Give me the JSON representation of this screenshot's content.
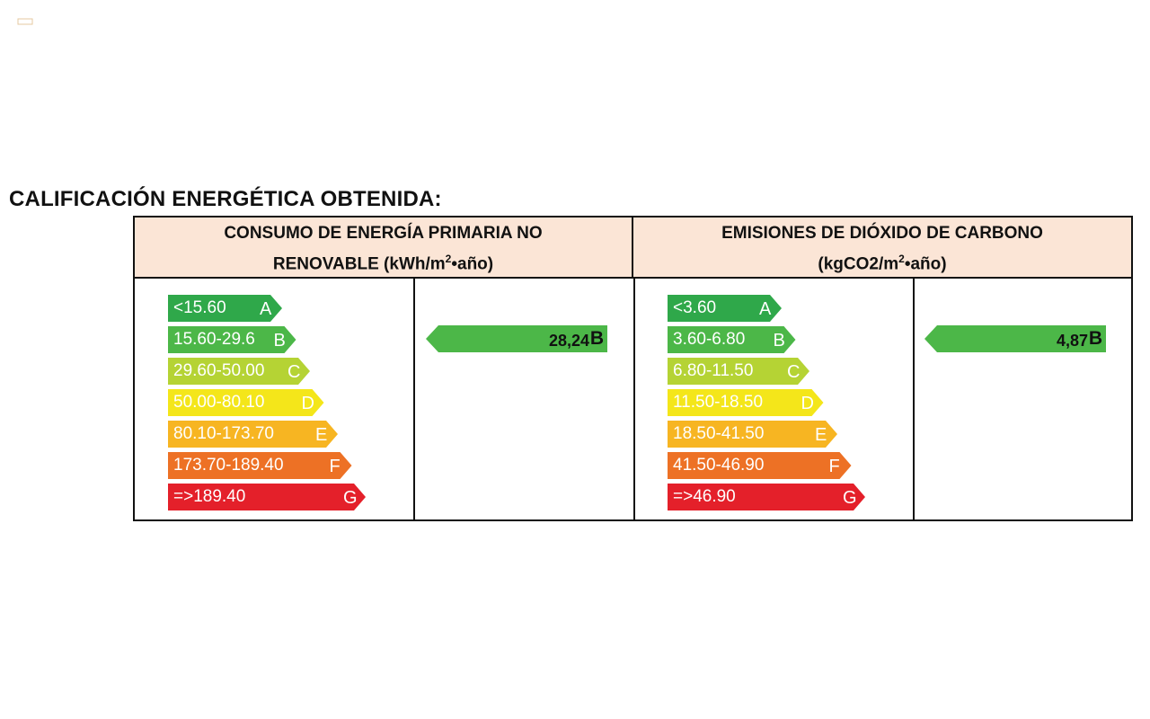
{
  "title": "CALIFICACIÓN ENERGÉTICA OBTENIDA:",
  "energy": {
    "header_line1": "CONSUMO  DE ENERGÍA PRIMARIA NO",
    "header_line2_pre": "RENOVABLE (kWh/m",
    "header_sup": "2",
    "header_line2_post": "•año)",
    "bands": [
      {
        "range": "<15.60",
        "letter": "A",
        "color": "#2fa84a"
      },
      {
        "range": "15.60-29.6",
        "letter": "B",
        "color": "#4cb748"
      },
      {
        "range": "29.60-50.00",
        "letter": "C",
        "color": "#b5d334"
      },
      {
        "range": "50.00-80.10",
        "letter": "D",
        "color": "#f4e61a"
      },
      {
        "range": "80.10-173.70",
        "letter": "E",
        "color": "#f7b522"
      },
      {
        "range": "173.70-189.40",
        "letter": "F",
        "color": "#ed7125"
      },
      {
        "range": "=>189.40",
        "letter": "G",
        "color": "#e4202a"
      }
    ],
    "result_value": "28,24",
    "result_letter": "B",
    "result_color": "#4cb748"
  },
  "emissions": {
    "header_line1": "EMISIONES DE DIÓXIDO DE CARBONO",
    "header_line2_pre": "(kgCO2/m",
    "header_sup": "2",
    "header_line2_post": "•año)",
    "bands": [
      {
        "range": "<3.60",
        "letter": "A",
        "color": "#2fa84a"
      },
      {
        "range": "3.60-6.80",
        "letter": "B",
        "color": "#4cb748"
      },
      {
        "range": "6.80-11.50",
        "letter": "C",
        "color": "#b5d334"
      },
      {
        "range": "11.50-18.50",
        "letter": "D",
        "color": "#f4e61a"
      },
      {
        "range": "18.50-41.50",
        "letter": "E",
        "color": "#f7b522"
      },
      {
        "range": "41.50-46.90",
        "letter": "F",
        "color": "#ed7125"
      },
      {
        "range": "=>46.90",
        "letter": "G",
        "color": "#e4202a"
      }
    ],
    "result_value": "4,87",
    "result_letter": "B",
    "result_color": "#4cb748"
  }
}
